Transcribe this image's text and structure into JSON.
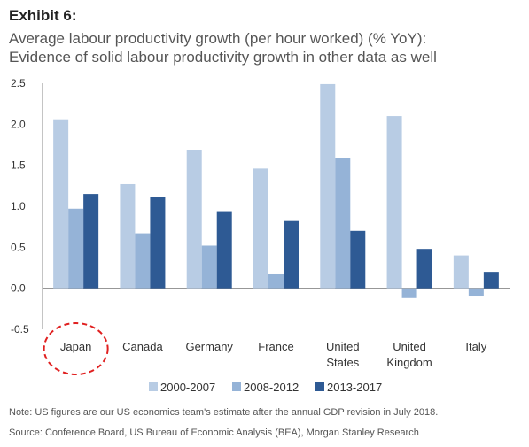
{
  "header": {
    "exhibit": "Exhibit 6:",
    "title_line1": "Average labour productivity growth (per hour worked) (% YoY):",
    "title_line2": "Evidence of solid labour productivity growth in other data as well"
  },
  "chart_data": {
    "type": "bar",
    "categories": [
      [
        "Japan"
      ],
      [
        "Canada"
      ],
      [
        "Germany"
      ],
      [
        "France"
      ],
      [
        "United",
        "States"
      ],
      [
        "United",
        "Kingdom"
      ],
      [
        "Italy"
      ]
    ],
    "series": [
      {
        "name": "2000-2007",
        "color": "#b8cce4",
        "values": [
          2.05,
          1.27,
          1.69,
          1.46,
          2.49,
          2.1,
          0.4
        ]
      },
      {
        "name": "2008-2012",
        "color": "#95b3d7",
        "values": [
          0.97,
          0.67,
          0.52,
          0.18,
          1.59,
          -0.12,
          -0.09
        ]
      },
      {
        "name": "2013-2017",
        "color": "#2e5a94",
        "values": [
          1.15,
          1.11,
          0.94,
          0.82,
          0.7,
          0.48,
          0.2
        ]
      }
    ],
    "yticks": [
      "2.5",
      "2.0",
      "1.5",
      "1.0",
      "0.5",
      "0.0",
      "-0.5"
    ],
    "ylim": [
      -0.5,
      2.5
    ],
    "highlight_category": "Japan",
    "highlight_color": "#e02020"
  },
  "footer": {
    "note": "Note: US figures are our US economics team's estimate after the annual GDP revision in July 2018.",
    "source": "Source: Conference Board, US Bureau of Economic Analysis (BEA), Morgan Stanley Research"
  }
}
